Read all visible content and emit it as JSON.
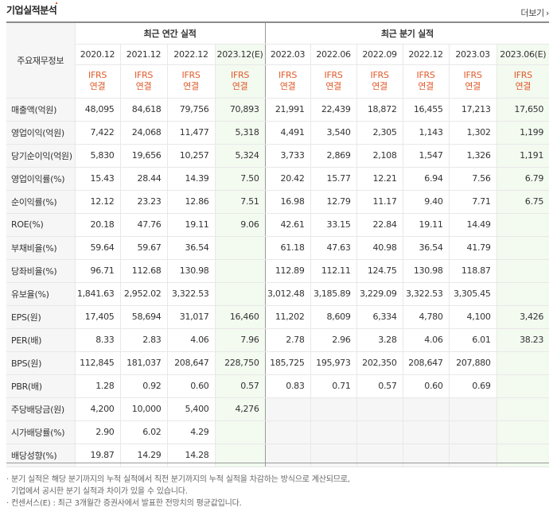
{
  "header": {
    "title": "기업실적분석",
    "more_label": "더보기"
  },
  "table": {
    "corner_label": "주요재무정보",
    "group_annual": "최근 연간 실적",
    "group_quarterly": "최근 분기 실적",
    "annual_periods": [
      "2020.12",
      "2021.12",
      "2022.12",
      "2023.12(E)"
    ],
    "quarterly_periods": [
      "2022.03",
      "2022.06",
      "2022.09",
      "2022.12",
      "2023.03",
      "2023.06(E)"
    ],
    "basis_line1": "IFRS",
    "basis_line2": "연결",
    "rows": [
      {
        "label": "매출액(억원)",
        "values": [
          "48,095",
          "84,618",
          "79,756",
          "70,893",
          "21,991",
          "22,439",
          "18,872",
          "16,455",
          "17,213",
          "17,650"
        ]
      },
      {
        "label": "영업이익(억원)",
        "values": [
          "7,422",
          "24,068",
          "11,477",
          "5,318",
          "4,491",
          "3,540",
          "2,305",
          "1,143",
          "1,302",
          "1,199"
        ]
      },
      {
        "label": "당기순이익(억원)",
        "values": [
          "5,830",
          "19,656",
          "10,257",
          "5,324",
          "3,733",
          "2,869",
          "2,108",
          "1,547",
          "1,326",
          "1,191"
        ]
      },
      {
        "label": "영업이익률(%)",
        "values": [
          "15.43",
          "28.44",
          "14.39",
          "7.50",
          "20.42",
          "15.77",
          "12.21",
          "6.94",
          "7.56",
          "6.79"
        ]
      },
      {
        "label": "순이익률(%)",
        "values": [
          "12.12",
          "23.23",
          "12.86",
          "7.51",
          "16.98",
          "12.79",
          "11.17",
          "9.40",
          "7.71",
          "6.75"
        ]
      },
      {
        "label": "ROE(%)",
        "values": [
          "20.18",
          "47.76",
          "19.11",
          "9.06",
          "42.61",
          "33.15",
          "22.84",
          "19.11",
          "14.49",
          ""
        ]
      },
      {
        "label": "부채비율(%)",
        "values": [
          "59.64",
          "59.67",
          "36.54",
          "",
          "61.18",
          "47.63",
          "40.98",
          "36.54",
          "41.79",
          ""
        ]
      },
      {
        "label": "당좌비율(%)",
        "values": [
          "96.71",
          "112.68",
          "130.98",
          "",
          "112.89",
          "112.11",
          "124.75",
          "130.98",
          "118.87",
          ""
        ]
      },
      {
        "label": "유보율(%)",
        "values": [
          "1,841.63",
          "2,952.02",
          "3,322.53",
          "",
          "3,012.48",
          "3,185.89",
          "3,229.09",
          "3,322.53",
          "3,305.45",
          ""
        ]
      },
      {
        "label": "EPS(원)",
        "values": [
          "17,405",
          "58,694",
          "31,017",
          "16,460",
          "11,202",
          "8,609",
          "6,334",
          "4,780",
          "4,100",
          "3,426"
        ]
      },
      {
        "label": "PER(배)",
        "values": [
          "8.33",
          "2.83",
          "4.06",
          "7.96",
          "2.78",
          "2.96",
          "3.28",
          "4.06",
          "6.01",
          "38.23"
        ]
      },
      {
        "label": "BPS(원)",
        "values": [
          "112,845",
          "181,037",
          "208,647",
          "228,750",
          "185,725",
          "195,973",
          "202,350",
          "208,647",
          "207,880",
          ""
        ]
      },
      {
        "label": "PBR(배)",
        "values": [
          "1.28",
          "0.92",
          "0.60",
          "0.57",
          "0.83",
          "0.71",
          "0.57",
          "0.60",
          "0.69",
          ""
        ]
      },
      {
        "label": "주당배당금(원)",
        "values": [
          "4,200",
          "10,000",
          "5,400",
          "4,276",
          "",
          "",
          "",
          "",
          "",
          ""
        ]
      },
      {
        "label": "시가배당률(%)",
        "values": [
          "2.90",
          "6.02",
          "4.29",
          "",
          "",
          "",
          "",
          "",
          "",
          ""
        ]
      },
      {
        "label": "배당성향(%)",
        "values": [
          "19.87",
          "14.29",
          "14.28",
          "",
          "",
          "",
          "",
          "",
          "",
          ""
        ]
      }
    ]
  },
  "notes": [
    "· 분기 실적은 해당 분기까지의 누적 실적에서 직전 분기까지의 누적 실적을 차감하는 방식으로 계산되므로,",
    "  기업에서 공시한 분기 실적과 차이가 있을 수 있습니다.",
    "· 컨센서스(E) : 최근 3개월간 증권사에서 발표한 전망치의 평균값입니다."
  ]
}
